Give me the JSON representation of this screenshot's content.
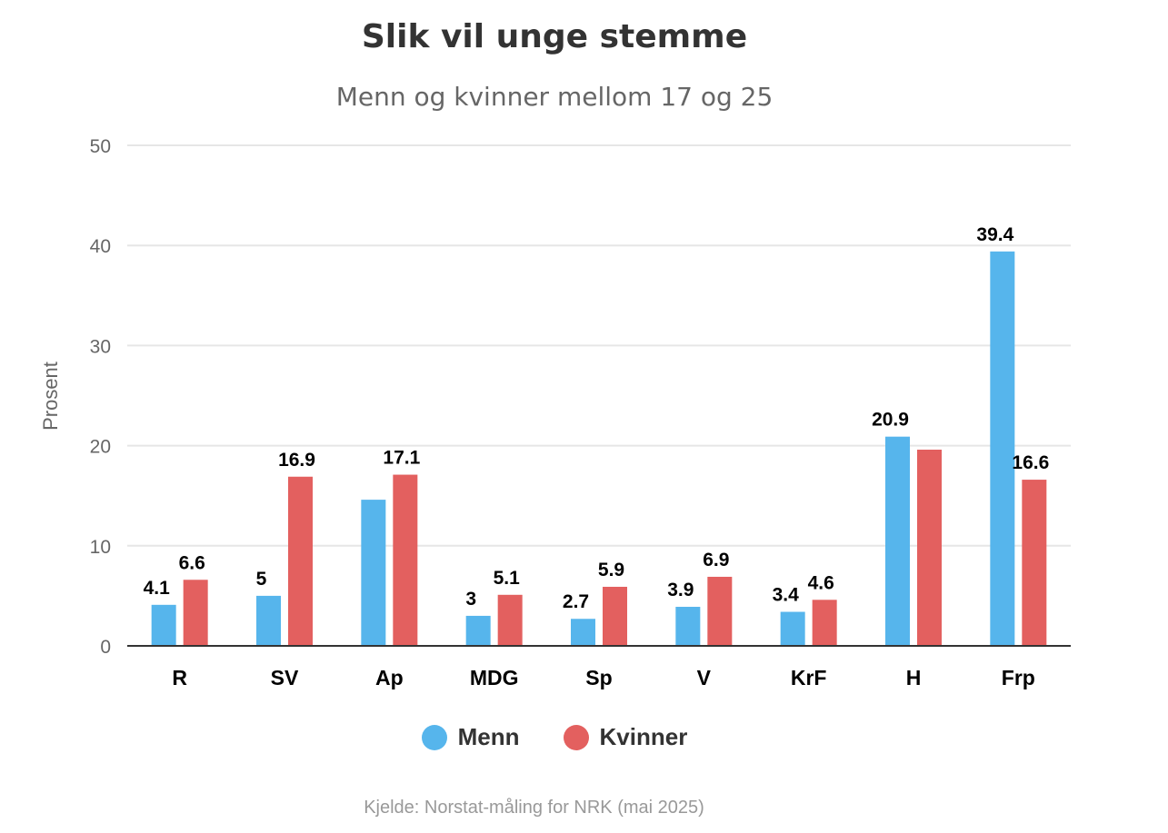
{
  "colors": {
    "menn": "#56b5ec",
    "kvinner": "#e3605f",
    "grid": "#e6e6e6",
    "axis": "#333333",
    "text": "#333333",
    "muted": "#666666",
    "credits": "#999999"
  },
  "chart_data": {
    "type": "bar",
    "title": "Slik vil unge stemme",
    "subtitle": "Menn og kvinner mellom 17 og 25",
    "ylabel": "Prosent",
    "xlabel": "",
    "ylim": [
      0,
      50
    ],
    "yticks": [
      0,
      10,
      20,
      30,
      40,
      50
    ],
    "grid": true,
    "legend_position": "bottom-center",
    "categories": [
      "R",
      "SV",
      "Ap",
      "MDG",
      "Sp",
      "V",
      "KrF",
      "H",
      "Frp"
    ],
    "series": [
      {
        "name": "Menn",
        "color": "#56b5ec",
        "values": [
          4.1,
          5,
          14.6,
          3,
          2.7,
          3.9,
          3.4,
          20.9,
          39.4
        ],
        "labels": [
          "4.1",
          "5",
          "",
          "3",
          "2.7",
          "3.9",
          "3.4",
          "20.9",
          "39.4"
        ]
      },
      {
        "name": "Kvinner",
        "color": "#e3605f",
        "values": [
          6.6,
          16.9,
          17.1,
          5.1,
          5.9,
          6.9,
          4.6,
          19.6,
          16.6
        ],
        "labels": [
          "6.6",
          "16.9",
          "17.1",
          "5.1",
          "5.9",
          "6.9",
          "4.6",
          "",
          "16.6"
        ]
      }
    ],
    "credits": "Kjelde: Norstat-måling for NRK (mai 2025)"
  }
}
